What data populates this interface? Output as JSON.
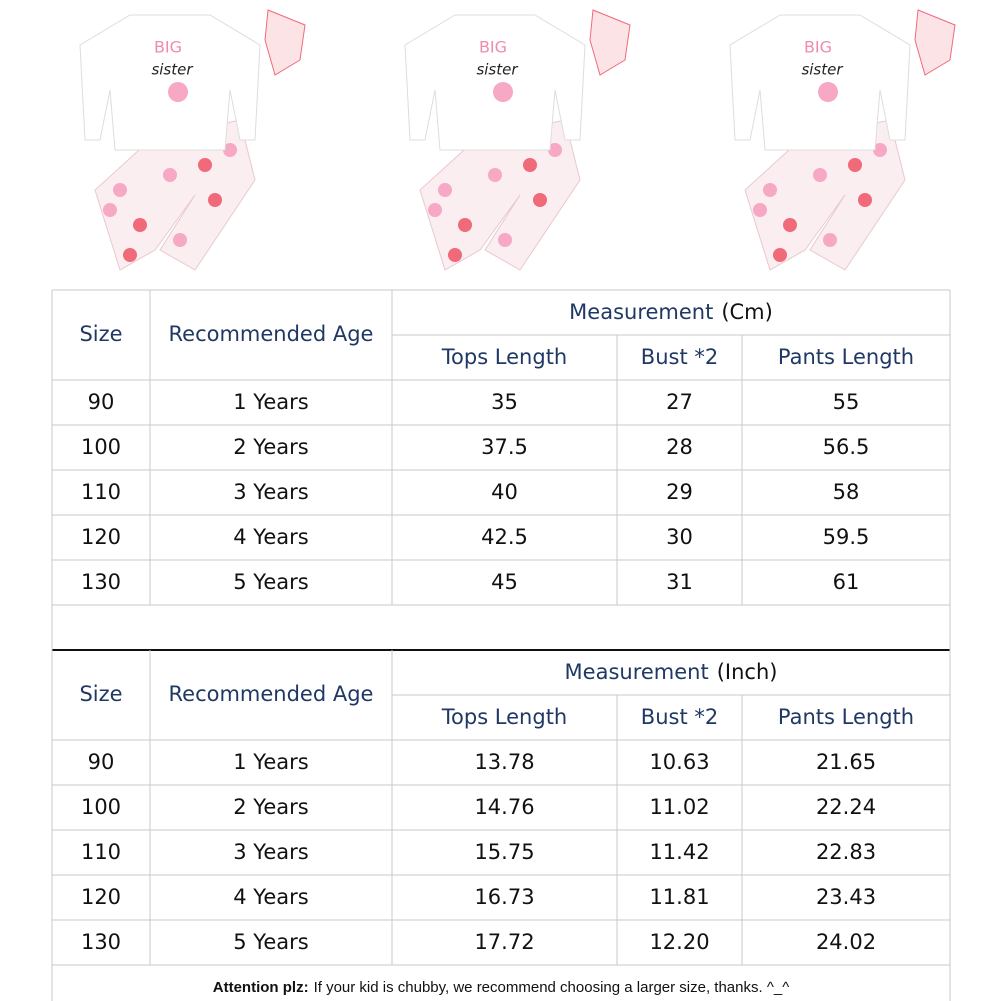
{
  "shirt_print": {
    "big": "BIG",
    "sister": "sister"
  },
  "tables": [
    {
      "measurement_label": "Measurement",
      "unit": "(Cm)",
      "columns": [
        "Size",
        "Recommended Age",
        "Tops Length",
        "Bust *2",
        "Pants Length"
      ],
      "rows": [
        [
          "90",
          "1 Years",
          "35",
          "27",
          "55"
        ],
        [
          "100",
          "2 Years",
          "37.5",
          "28",
          "56.5"
        ],
        [
          "110",
          "3 Years",
          "40",
          "29",
          "58"
        ],
        [
          "120",
          "4 Years",
          "42.5",
          "30",
          "59.5"
        ],
        [
          "130",
          "5 Years",
          "45",
          "31",
          "61"
        ]
      ]
    },
    {
      "measurement_label": "Measurement",
      "unit": "(Inch)",
      "columns": [
        "Size",
        "Recommended Age",
        "Tops Length",
        "Bust *2",
        "Pants Length"
      ],
      "rows": [
        [
          "90",
          "1 Years",
          "13.78",
          "10.63",
          "21.65"
        ],
        [
          "100",
          "2 Years",
          "14.76",
          "11.02",
          "22.24"
        ],
        [
          "110",
          "3 Years",
          "15.75",
          "11.42",
          "22.83"
        ],
        [
          "120",
          "4 Years",
          "16.73",
          "11.81",
          "23.43"
        ],
        [
          "130",
          "5 Years",
          "17.72",
          "12.20",
          "24.02"
        ]
      ]
    }
  ],
  "note": {
    "label": "Attention plz:",
    "text": "If your kid is chubby, we recommend choosing a larger size, thanks. ^_^"
  }
}
